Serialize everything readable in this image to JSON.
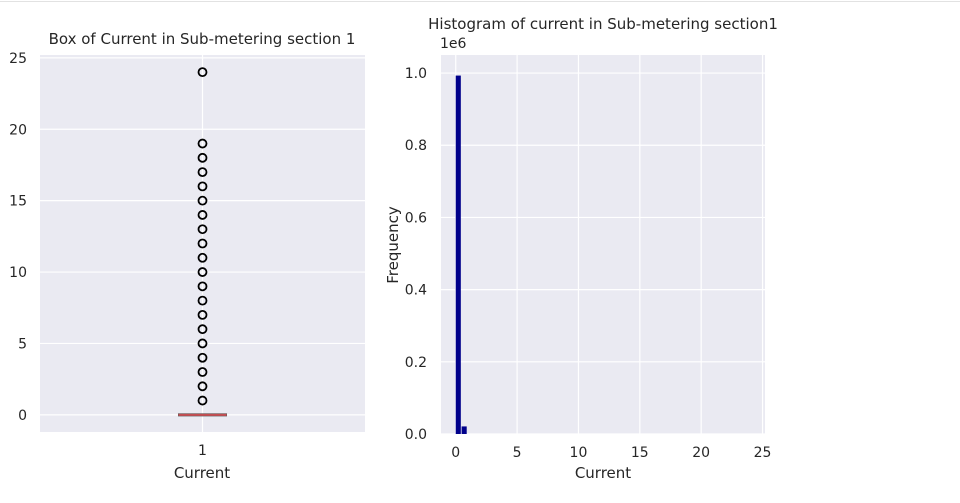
{
  "chart_data": [
    {
      "type": "box",
      "title": "Box of Current in Sub-metering section 1",
      "xlabel": "Current",
      "ylabel": "",
      "categories": [
        "1"
      ],
      "ylim": [
        -1.2,
        25.2
      ],
      "yticks": [
        0,
        5,
        10,
        15,
        20,
        25
      ],
      "grid": true,
      "box": {
        "q1": 0,
        "median": 0,
        "q3": 0,
        "whisker_low": 0,
        "whisker_high": 0
      },
      "outliers": [
        1,
        2,
        3,
        4,
        5,
        6,
        7,
        8,
        9,
        10,
        11,
        12,
        13,
        14,
        15,
        16,
        17,
        18,
        19,
        24
      ],
      "colors": {
        "background": "#eaeaf2",
        "median": "#c44e52",
        "outlier_edge": "#000000"
      }
    },
    {
      "type": "bar",
      "title": "Histogram of current in Sub-metering section1",
      "xlabel": "Current",
      "ylabel": "Frequency",
      "offset_label": "1e6",
      "xlim": [
        -1.2,
        25.2
      ],
      "ylim": [
        0,
        1.05
      ],
      "xticks": [
        0,
        5,
        10,
        15,
        20,
        25
      ],
      "yticks": [
        "0.0",
        "0.2",
        "0.4",
        "0.6",
        "0.8",
        "1.0"
      ],
      "bin_edges": [
        0,
        0.48,
        0.96
      ],
      "values": [
        0.993,
        0.021
      ],
      "grid": true,
      "colors": {
        "bar": "#00008b",
        "background": "#eaeaf2"
      }
    }
  ]
}
